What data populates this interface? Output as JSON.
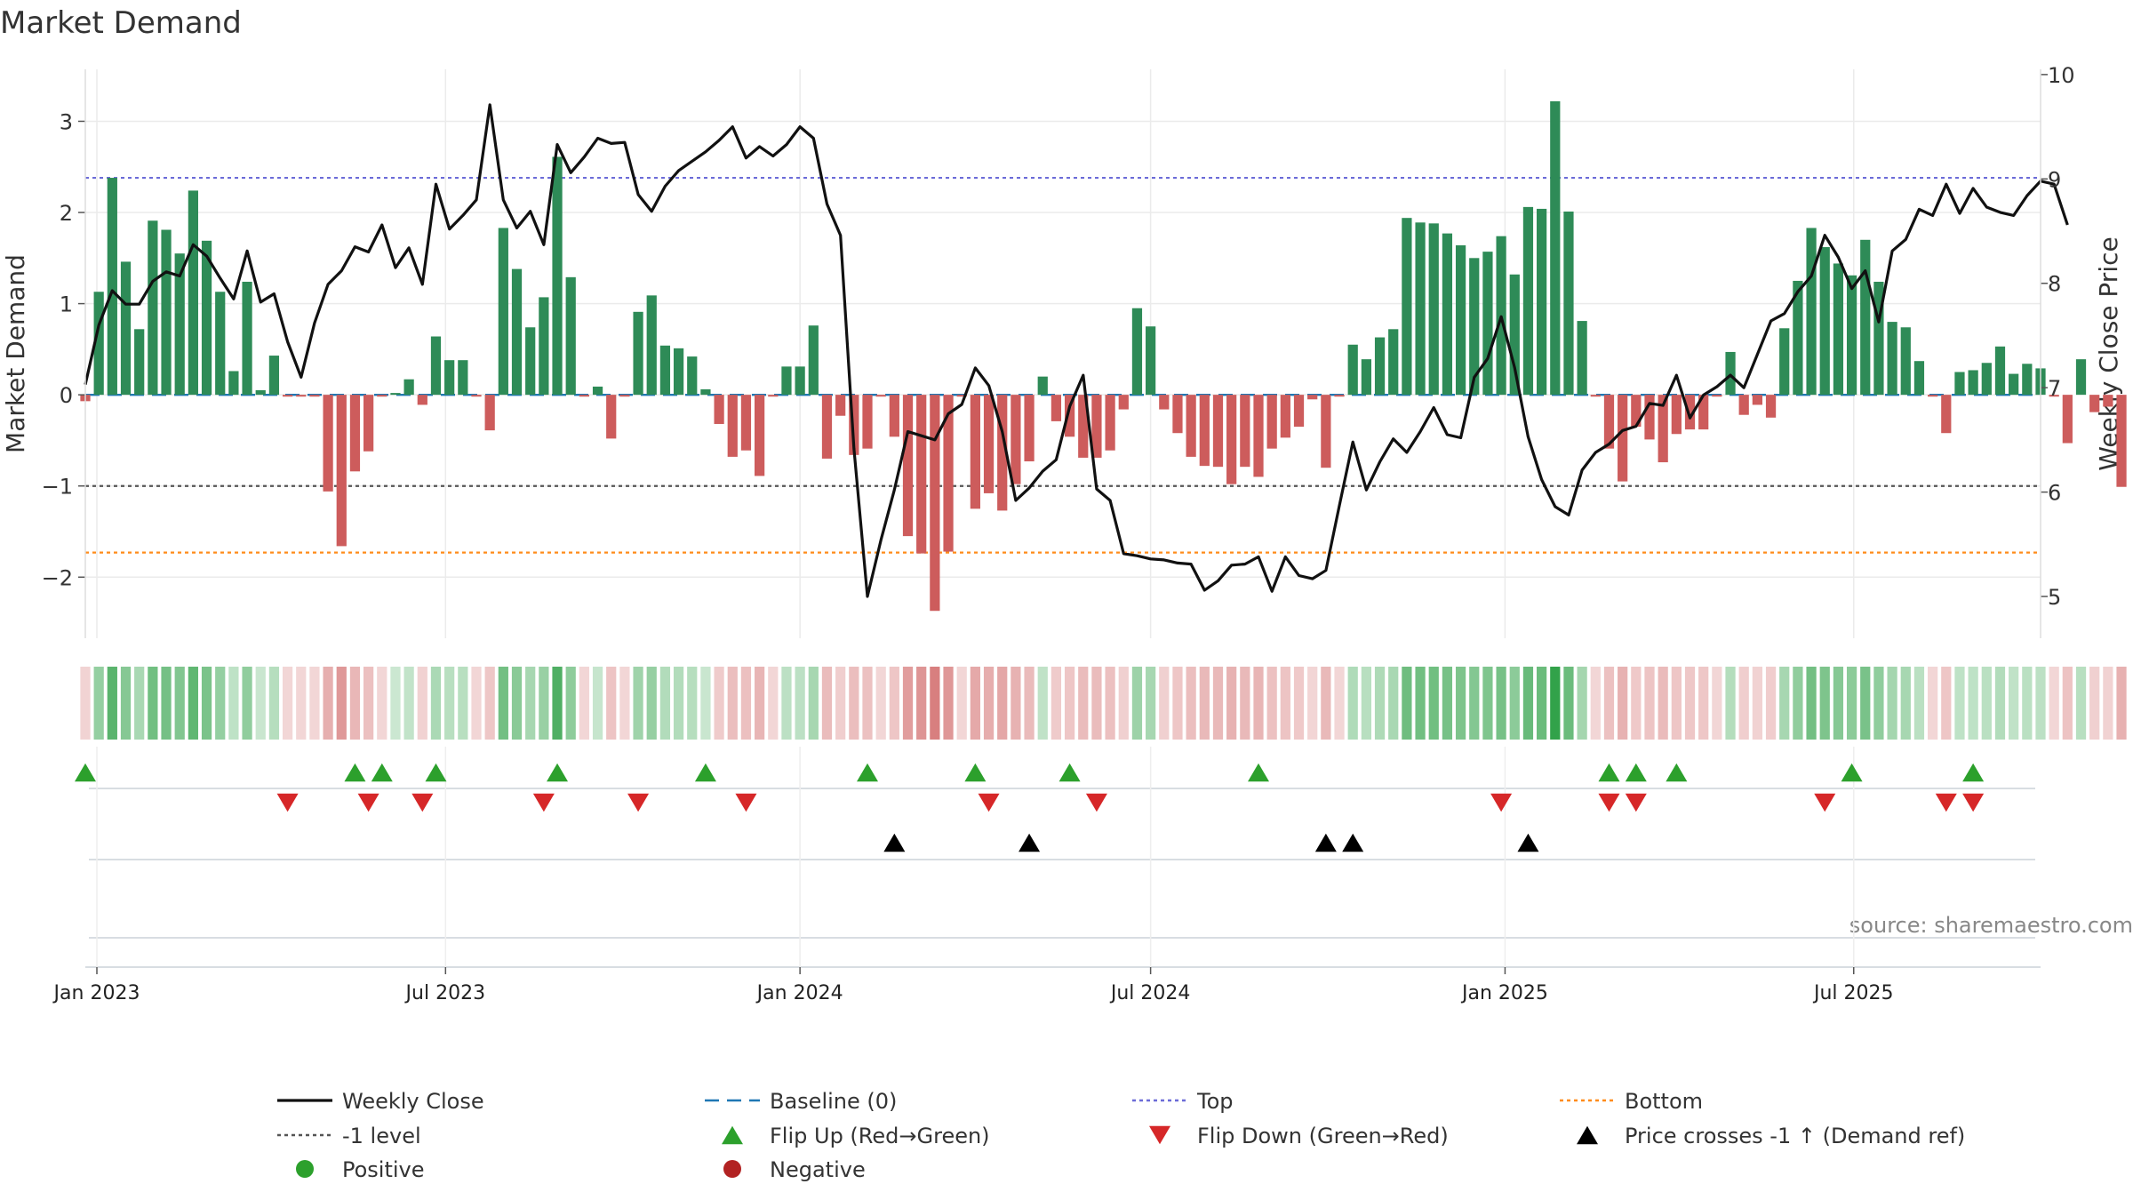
{
  "chart_data": {
    "type": "bar",
    "title": "Market Demand",
    "ylabel": "Market Demand",
    "ylabel_right": "Weekly Close Price",
    "source": "source: sharemaestro.com",
    "ylim": [
      -2.67,
      3.57
    ],
    "ylim_right": [
      4.6,
      10.05
    ],
    "yticks": [
      {
        "value": 3,
        "label": "3"
      },
      {
        "value": 2,
        "label": "2"
      },
      {
        "value": 1,
        "label": "1"
      },
      {
        "value": 0,
        "label": "0"
      },
      {
        "value": -1,
        "label": "−1"
      },
      {
        "value": -2,
        "label": "−2"
      }
    ],
    "yticks_right": [
      {
        "value": 10,
        "label": "10"
      },
      {
        "value": 9,
        "label": "9"
      },
      {
        "value": 8,
        "label": "8"
      },
      {
        "value": 7,
        "label": "7"
      },
      {
        "value": 6,
        "label": "6"
      },
      {
        "value": 5,
        "label": "5"
      }
    ],
    "x_start": "2022-12-26",
    "x_end": "2025-10-06",
    "xticks": [
      {
        "date": "2023-01-01",
        "label": "Jan 2023"
      },
      {
        "date": "2023-07-01",
        "label": "Jul 2023"
      },
      {
        "date": "2024-01-01",
        "label": "Jan 2024"
      },
      {
        "date": "2024-07-01",
        "label": "Jul 2024"
      },
      {
        "date": "2025-01-01",
        "label": "Jan 2025"
      },
      {
        "date": "2025-07-01",
        "label": "Jul 2025"
      }
    ],
    "first_week": "2022-12-26",
    "week_step_days": 7,
    "demand": [
      -0.07,
      1.13,
      2.38,
      1.46,
      0.72,
      1.91,
      1.81,
      1.55,
      2.24,
      1.69,
      1.13,
      0.26,
      1.24,
      0.05,
      0.43,
      -0.02,
      -0.02,
      -0.02,
      -1.06,
      -1.66,
      -0.84,
      -0.62,
      -0.02,
      0.02,
      0.17,
      -0.11,
      0.64,
      0.38,
      0.38,
      -0.02,
      -0.39,
      1.83,
      1.38,
      0.74,
      1.07,
      2.61,
      1.29,
      -0.02,
      0.09,
      -0.48,
      -0.02,
      0.91,
      1.09,
      0.54,
      0.51,
      0.42,
      0.06,
      -0.32,
      -0.68,
      -0.61,
      -0.89,
      -0.02,
      0.31,
      0.31,
      0.76,
      -0.7,
      -0.23,
      -0.66,
      -0.59,
      -0.02,
      -0.46,
      -1.55,
      -1.74,
      -2.37,
      -1.72,
      -0.02,
      -1.25,
      -1.08,
      -1.27,
      -0.98,
      -0.73,
      0.2,
      -0.29,
      -0.46,
      -0.69,
      -0.69,
      -0.61,
      -0.16,
      0.95,
      0.75,
      -0.16,
      -0.42,
      -0.68,
      -0.78,
      -0.79,
      -0.98,
      -0.79,
      -0.9,
      -0.59,
      -0.47,
      -0.35,
      -0.05,
      -0.8,
      -0.02,
      0.55,
      0.39,
      0.63,
      0.72,
      1.94,
      1.89,
      1.88,
      1.77,
      1.64,
      1.5,
      1.57,
      1.74,
      1.32,
      2.06,
      2.04,
      3.22,
      2.01,
      0.81,
      -0.02,
      -0.59,
      -0.95,
      -0.35,
      -0.49,
      -0.74,
      -0.43,
      -0.38,
      -0.38,
      -0.02,
      0.47,
      -0.22,
      -0.11,
      -0.25,
      0.73,
      1.25,
      1.83,
      1.62,
      1.44,
      1.31,
      1.7,
      1.24,
      0.8,
      0.74,
      0.37,
      -0.02,
      -0.42,
      0.25,
      0.27,
      0.35,
      0.53,
      0.23,
      0.34,
      0.29,
      -0.02,
      -0.53,
      0.39,
      -0.19,
      -0.13,
      -1.01
    ],
    "weekly_close": [
      7.03,
      7.6,
      7.93,
      7.8,
      7.8,
      8.02,
      8.11,
      8.07,
      8.37,
      8.26,
      8.05,
      7.85,
      8.31,
      7.82,
      7.9,
      7.44,
      7.1,
      7.62,
      7.99,
      8.12,
      8.35,
      8.3,
      8.56,
      8.15,
      8.34,
      7.99,
      8.95,
      8.52,
      8.65,
      8.8,
      9.71,
      8.8,
      8.53,
      8.69,
      8.37,
      9.33,
      9.06,
      9.21,
      9.39,
      9.34,
      9.35,
      8.85,
      8.69,
      8.93,
      9.08,
      9.17,
      9.26,
      9.37,
      9.5,
      9.2,
      9.31,
      9.22,
      9.33,
      9.5,
      9.39,
      8.76,
      8.46,
      6.42,
      5.0,
      5.54,
      6.02,
      6.58,
      6.54,
      6.5,
      6.75,
      6.84,
      7.19,
      7.02,
      6.58,
      5.92,
      6.04,
      6.2,
      6.31,
      6.82,
      7.12,
      6.03,
      5.92,
      5.41,
      5.39,
      5.36,
      5.35,
      5.32,
      5.31,
      5.06,
      5.15,
      5.3,
      5.31,
      5.38,
      5.05,
      5.38,
      5.2,
      5.17,
      5.25,
      5.87,
      6.48,
      6.02,
      6.29,
      6.51,
      6.38,
      6.58,
      6.81,
      6.55,
      6.52,
      7.1,
      7.28,
      7.68,
      7.19,
      6.53,
      6.12,
      5.86,
      5.78,
      6.21,
      6.38,
      6.46,
      6.59,
      6.63,
      6.85,
      6.83,
      7.12,
      6.71,
      6.93,
      7.01,
      7.12,
      7.0,
      7.32,
      7.64,
      7.71,
      7.92,
      8.07,
      8.46,
      8.25,
      7.95,
      8.12,
      7.63,
      8.31,
      8.42,
      8.71,
      8.65,
      8.95,
      8.67,
      8.91,
      8.73,
      8.68,
      8.65,
      8.84,
      8.98,
      8.95,
      8.56
    ],
    "reference_lines": [
      {
        "name": "Baseline (0)",
        "value": 0,
        "color": "#1f77b4",
        "style": "dash"
      },
      {
        "name": "Top",
        "value": 2.38,
        "color": "#6c6cd8",
        "style": "dot"
      },
      {
        "name": "-1 level",
        "value": -1.0,
        "color": "#555555",
        "style": "dot"
      },
      {
        "name": "Bottom",
        "value": -1.73,
        "color": "#ff8c1a",
        "style": "dot"
      }
    ],
    "flip_up_weeks": [
      0,
      20,
      22,
      26,
      35,
      46,
      58,
      66,
      73,
      87,
      113,
      115,
      118,
      131,
      140
    ],
    "flip_down_weeks": [
      15,
      21,
      25,
      34,
      41,
      49,
      67,
      75,
      105,
      113,
      115,
      129,
      138,
      140
    ],
    "price_cross_weeks": [
      60,
      70,
      92,
      94,
      107
    ],
    "colors": {
      "positive_bar": "#2e8b57",
      "negative_bar": "#cd5c5c",
      "weekly_close": "#111111",
      "flip_up": "#2ca02c",
      "flip_down": "#d62728",
      "price_cross": "#000000",
      "positive_dot": "#2ca02c",
      "negative_dot": "#b22222"
    },
    "legend": [
      {
        "key": "close",
        "label": "Weekly Close"
      },
      {
        "key": "baseline",
        "label": "Baseline (0)"
      },
      {
        "key": "top",
        "label": "Top"
      },
      {
        "key": "bottom",
        "label": "Bottom"
      },
      {
        "key": "minus1",
        "label": "-1 level"
      },
      {
        "key": "flipup",
        "label": "Flip Up (Red→Green)"
      },
      {
        "key": "flipdown",
        "label": "Flip Down (Green→Red)"
      },
      {
        "key": "cross",
        "label": "Price crosses -1 ↑ (Demand ref)"
      },
      {
        "key": "positive",
        "label": "Positive"
      },
      {
        "key": "negative",
        "label": "Negative"
      }
    ],
    "grid": true,
    "legend_position": "bottom"
  }
}
